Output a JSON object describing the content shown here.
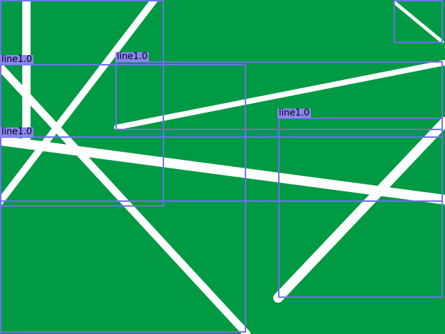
{
  "image": {
    "background_color": "#009944",
    "line_color": "#ffffff",
    "box_color": "#6f6ff0",
    "label_background": "#8a84f0"
  },
  "detections": [
    {
      "id": "det-1",
      "label": "line1.0"
    },
    {
      "id": "det-2",
      "label": "line1.0"
    },
    {
      "id": "det-3",
      "label": "line1.0"
    },
    {
      "id": "det-4",
      "label": "line1.0"
    }
  ]
}
